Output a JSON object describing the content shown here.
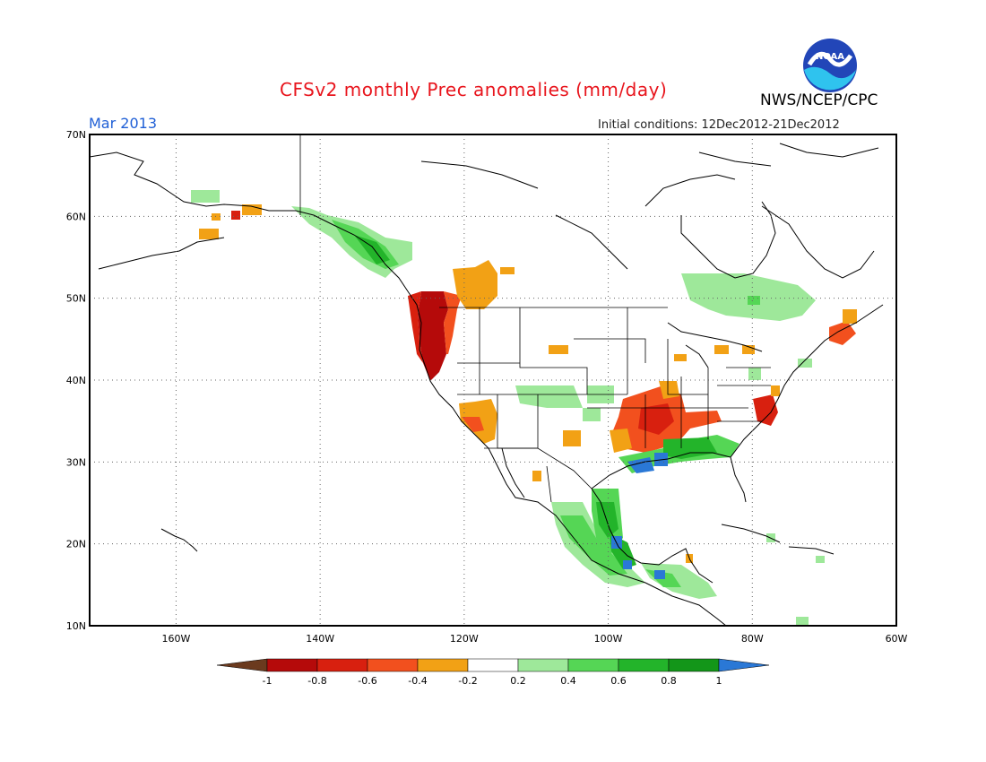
{
  "header": {
    "title": "CFSv2 monthly Prec anomalies (mm/day)",
    "month": "Mar 2013",
    "initial_conditions": "Initial conditions: 12Dec2012-21Dec2012",
    "agency": "NWS/NCEP/CPC",
    "logo_text": "NOAA"
  },
  "map": {
    "lon_range": [
      -172,
      -60
    ],
    "lat_range": [
      10,
      70
    ],
    "lat_ticks": [
      {
        "lat": 70,
        "label": "70N"
      },
      {
        "lat": 60,
        "label": "60N"
      },
      {
        "lat": 50,
        "label": "50N"
      },
      {
        "lat": 40,
        "label": "40N"
      },
      {
        "lat": 30,
        "label": "30N"
      },
      {
        "lat": 20,
        "label": "20N"
      },
      {
        "lat": 10,
        "label": "10N"
      }
    ],
    "lon_ticks": [
      {
        "lon": -160,
        "label": "160W"
      },
      {
        "lon": -140,
        "label": "140W"
      },
      {
        "lon": -120,
        "label": "120W"
      },
      {
        "lon": -100,
        "label": "100W"
      },
      {
        "lon": -80,
        "label": "80W"
      },
      {
        "lon": -60,
        "label": "60W"
      }
    ],
    "anomaly_regions": [
      {
        "region": "Pacific Northwest coast",
        "value": -0.9
      },
      {
        "region": "Idaho / Montana",
        "value": -0.3
      },
      {
        "region": "Southern California / Arizona",
        "value": -0.5
      },
      {
        "region": "Texas / Arkansas / Tennessee",
        "value": -0.6
      },
      {
        "region": "Virginia coast",
        "value": -0.7
      },
      {
        "region": "Nova Scotia",
        "value": -0.6
      },
      {
        "region": "Southeast Alaska / BC coast",
        "value": 0.6
      },
      {
        "region": "Hudson Bay south",
        "value": 0.3
      },
      {
        "region": "Gulf Coast",
        "value": 0.7
      },
      {
        "region": "Louisiana coast",
        "value": 1.0
      },
      {
        "region": "Western Mexico",
        "value": 0.6
      },
      {
        "region": "Southern Mexico",
        "value": 1.0
      },
      {
        "region": "Central America",
        "value": 0.5
      }
    ]
  },
  "colorbar": {
    "labels": [
      "-1",
      "-0.8",
      "-0.6",
      "-0.4",
      "-0.2",
      "0.2",
      "0.4",
      "0.6",
      "0.8",
      "1"
    ],
    "colors": [
      "#6b3a1e",
      "#b50a0a",
      "#d8200f",
      "#f2501e",
      "#f2a115",
      "#ffffff",
      "#9ee89a",
      "#55d655",
      "#23b42a",
      "#139619",
      "#2a78d6"
    ]
  }
}
